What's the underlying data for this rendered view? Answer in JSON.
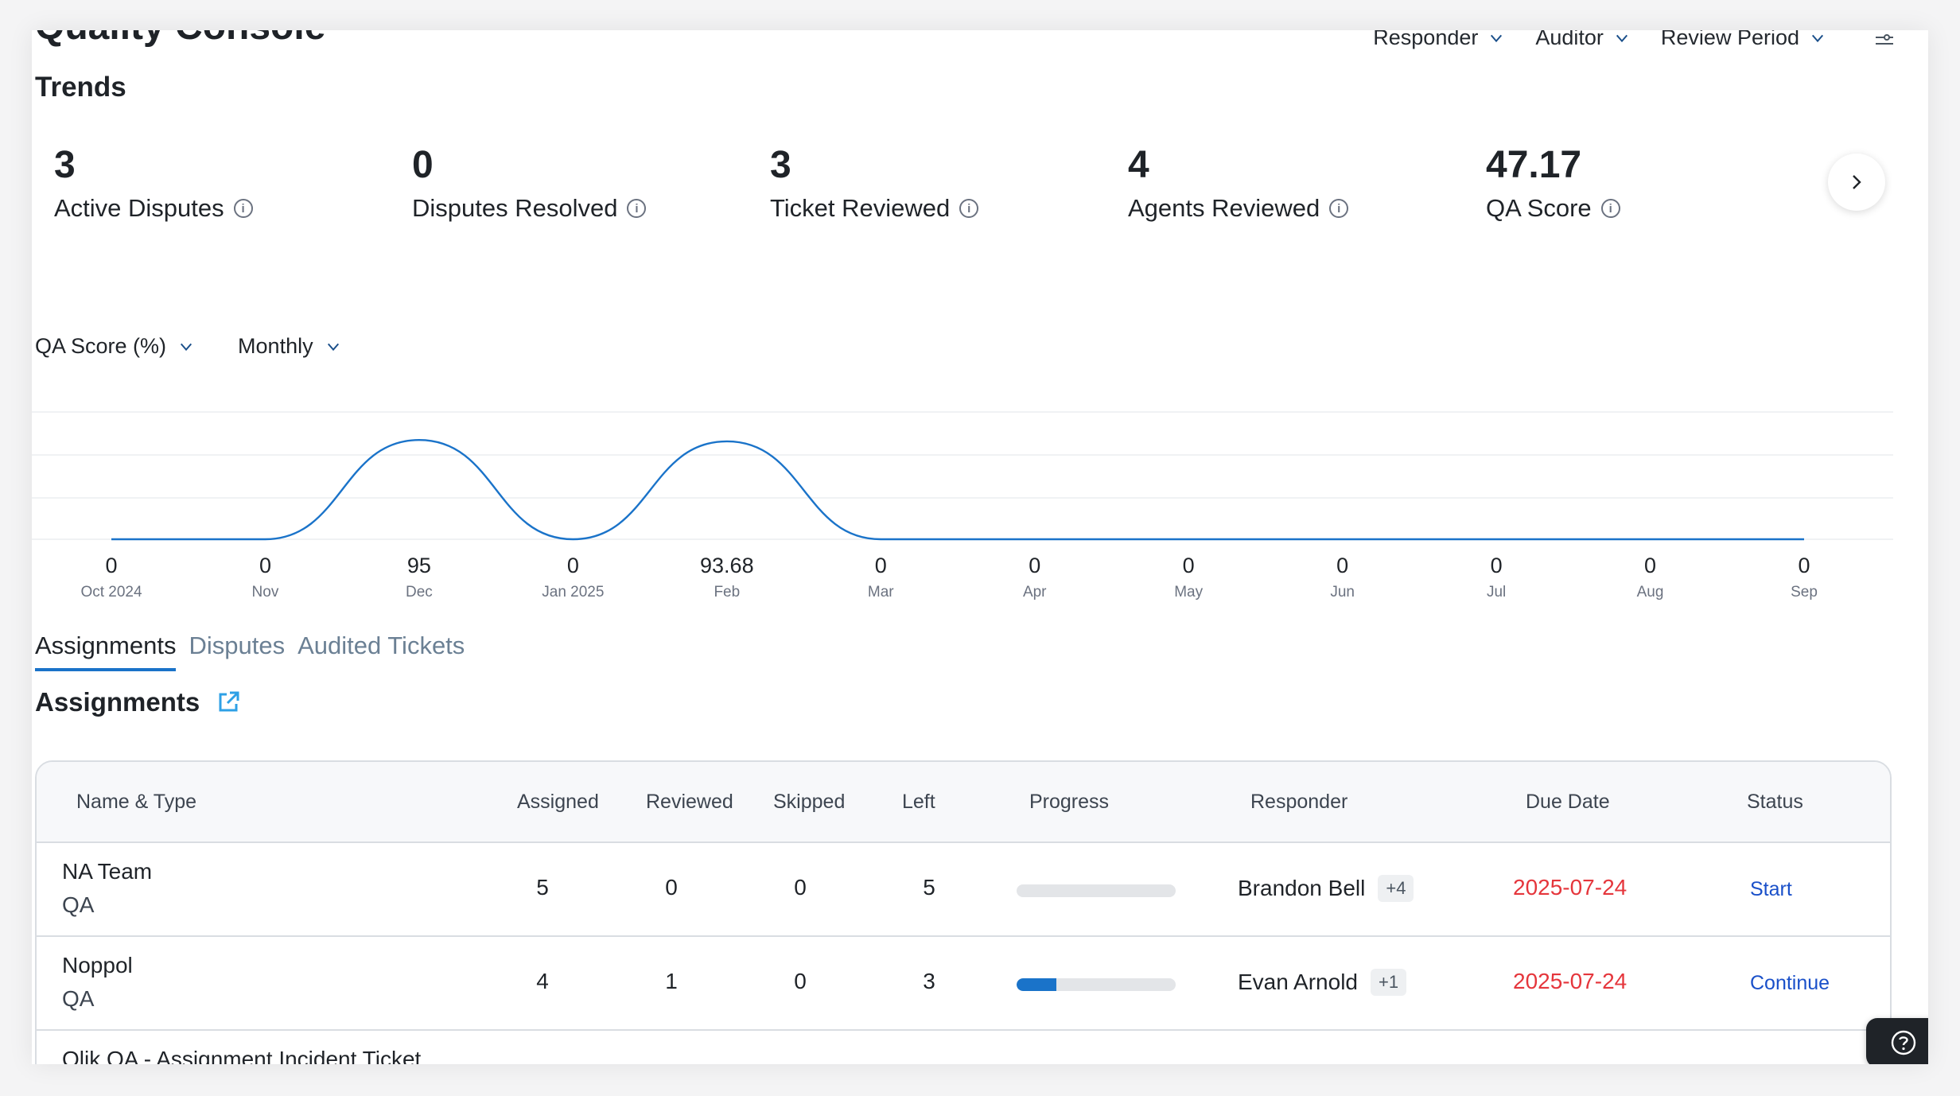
{
  "header": {
    "title": "Quality Console",
    "filters": [
      {
        "label": "Responder"
      },
      {
        "label": "Auditor"
      },
      {
        "label": "Review Period"
      }
    ]
  },
  "trends": {
    "title": "Trends",
    "kpis": [
      {
        "value": "3",
        "label": "Active Disputes"
      },
      {
        "value": "0",
        "label": "Disputes Resolved"
      },
      {
        "value": "3",
        "label": "Ticket Reviewed"
      },
      {
        "value": "4",
        "label": "Agents Reviewed"
      },
      {
        "value": "47.17",
        "label": "QA Score"
      }
    ],
    "metric_select": "QA Score (%)",
    "period_select": "Monthly"
  },
  "chart_data": {
    "type": "line",
    "x": [
      "Oct 2024",
      "Nov",
      "Dec",
      "Jan 2025",
      "Feb",
      "Mar",
      "Apr",
      "May",
      "Jun",
      "Jul",
      "Aug",
      "Sep"
    ],
    "values": [
      0,
      0,
      95,
      0,
      93.68,
      0,
      0,
      0,
      0,
      0,
      0,
      0
    ],
    "value_labels": [
      "0",
      "0",
      "95",
      "0",
      "93.68",
      "0",
      "0",
      "0",
      "0",
      "0",
      "0",
      "0"
    ],
    "ylim": [
      0,
      100
    ],
    "smooth": true,
    "grid": true,
    "color": "#1a73c9"
  },
  "tabs": [
    {
      "label": "Assignments",
      "active": true
    },
    {
      "label": "Disputes",
      "active": false
    },
    {
      "label": "Audited Tickets",
      "active": false
    }
  ],
  "assignments": {
    "title": "Assignments",
    "columns": [
      "Name & Type",
      "Assigned",
      "Reviewed",
      "Skipped",
      "Left",
      "Progress",
      "Responder",
      "Due Date",
      "Status"
    ],
    "rows": [
      {
        "name": "NA Team",
        "type": "QA",
        "assigned": "5",
        "reviewed": "0",
        "skipped": "0",
        "left": "5",
        "progress": 0,
        "responder": "Brandon Bell",
        "responder_more": "+4",
        "due": "2025-07-24",
        "status": "Start"
      },
      {
        "name": "Noppol",
        "type": "QA",
        "assigned": "4",
        "reviewed": "1",
        "skipped": "0",
        "left": "3",
        "progress": 0.25,
        "responder": "Evan Arnold",
        "responder_more": "+1",
        "due": "2025-07-24",
        "status": "Continue"
      },
      {
        "name": "Qlik QA - Assignment Incident Ticket",
        "type": "",
        "assigned": "",
        "reviewed": "",
        "skipped": "",
        "left": "",
        "progress": 0,
        "responder": "",
        "responder_more": "",
        "due": "",
        "status": ""
      }
    ]
  },
  "colors": {
    "accent": "#1a73c9",
    "due_date": "#e5363c",
    "link": "#1a50c9"
  }
}
